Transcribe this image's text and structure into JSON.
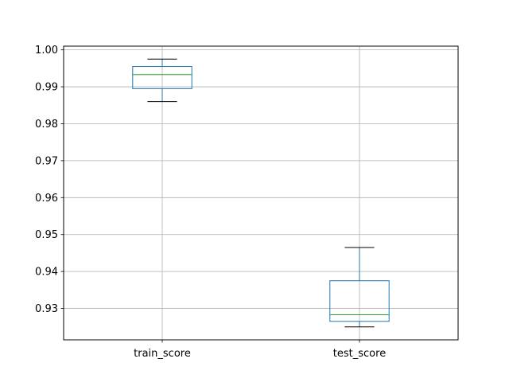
{
  "chart_data": {
    "type": "box",
    "title": "",
    "xlabel": "",
    "ylabel": "",
    "ylim": [
      0.9215,
      1.001
    ],
    "grid": true,
    "y_ticks": [
      0.93,
      0.94,
      0.95,
      0.96,
      0.97,
      0.98,
      0.99,
      1.0
    ],
    "y_tick_labels": [
      "0.93",
      "0.94",
      "0.95",
      "0.96",
      "0.97",
      "0.98",
      "0.99",
      "1.00"
    ],
    "categories": [
      "train_score",
      "test_score"
    ],
    "boxes": [
      {
        "name": "train_score",
        "whisker_low": 0.986,
        "q1": 0.9895,
        "median": 0.9933,
        "q3": 0.9955,
        "whisker_high": 0.9975
      },
      {
        "name": "test_score",
        "whisker_low": 0.925,
        "q1": 0.9265,
        "median": 0.9283,
        "q3": 0.9375,
        "whisker_high": 0.9465
      }
    ],
    "colors": {
      "box": "#1f77b4",
      "median": "#2ca02c",
      "whisker_cap": "#000000",
      "grid": "#b0b0b0"
    }
  }
}
